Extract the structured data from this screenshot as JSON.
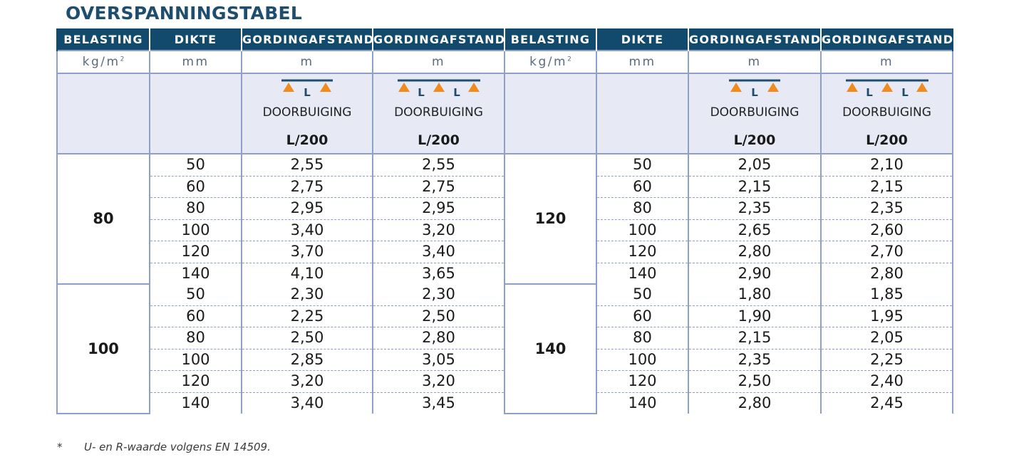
{
  "title": "OVERSPANNINGSTABEL",
  "headers": [
    "BELASTING",
    "DIKTE",
    "GORDINGAFSTAND",
    "GORDINGAFSTAND",
    "BELASTING",
    "DIKTE",
    "GORDINGAFSTAND",
    "GORDINGAFSTAND"
  ],
  "units": {
    "load": "kg/m",
    "load_sup": "2",
    "thickness": "mm",
    "span": "m"
  },
  "diagram": {
    "span_letter": "L",
    "label": "DOORBUIGING",
    "value": "L/200",
    "line_color": "#1e4d6e",
    "support_color": "#f08c1e"
  },
  "groups": [
    {
      "left": {
        "load": "80",
        "rows": [
          [
            "50",
            "2,55",
            "2,55"
          ],
          [
            "60",
            "2,75",
            "2,75"
          ],
          [
            "80",
            "2,95",
            "2,95"
          ],
          [
            "100",
            "3,40",
            "3,20"
          ],
          [
            "120",
            "3,70",
            "3,40"
          ],
          [
            "140",
            "4,10",
            "3,65"
          ]
        ]
      },
      "right": {
        "load": "120",
        "rows": [
          [
            "50",
            "2,05",
            "2,10"
          ],
          [
            "60",
            "2,15",
            "2,15"
          ],
          [
            "80",
            "2,35",
            "2,35"
          ],
          [
            "100",
            "2,65",
            "2,60"
          ],
          [
            "120",
            "2,80",
            "2,70"
          ],
          [
            "140",
            "2,90",
            "2,80"
          ]
        ]
      }
    },
    {
      "left": {
        "load": "100",
        "rows": [
          [
            "50",
            "2,30",
            "2,30"
          ],
          [
            "60",
            "2,25",
            "2,50"
          ],
          [
            "80",
            "2,50",
            "2,80"
          ],
          [
            "100",
            "2,85",
            "3,05"
          ],
          [
            "120",
            "3,20",
            "3,20"
          ],
          [
            "140",
            "3,40",
            "3,45"
          ]
        ]
      },
      "right": {
        "load": "140",
        "rows": [
          [
            "50",
            "1,80",
            "1,85"
          ],
          [
            "60",
            "1,90",
            "1,95"
          ],
          [
            "80",
            "2,15",
            "2,05"
          ],
          [
            "100",
            "2,35",
            "2,25"
          ],
          [
            "120",
            "2,50",
            "2,40"
          ],
          [
            "140",
            "2,80",
            "2,45"
          ]
        ]
      }
    }
  ],
  "footnote": {
    "marker": "*",
    "text": "U- en R-waarde volgens EN 14509."
  },
  "colors": {
    "header_bg": "#124a6e",
    "title": "#1e4d6e",
    "grid": "#8ea0c8",
    "diagram_bg": "#e7eaf5"
  }
}
